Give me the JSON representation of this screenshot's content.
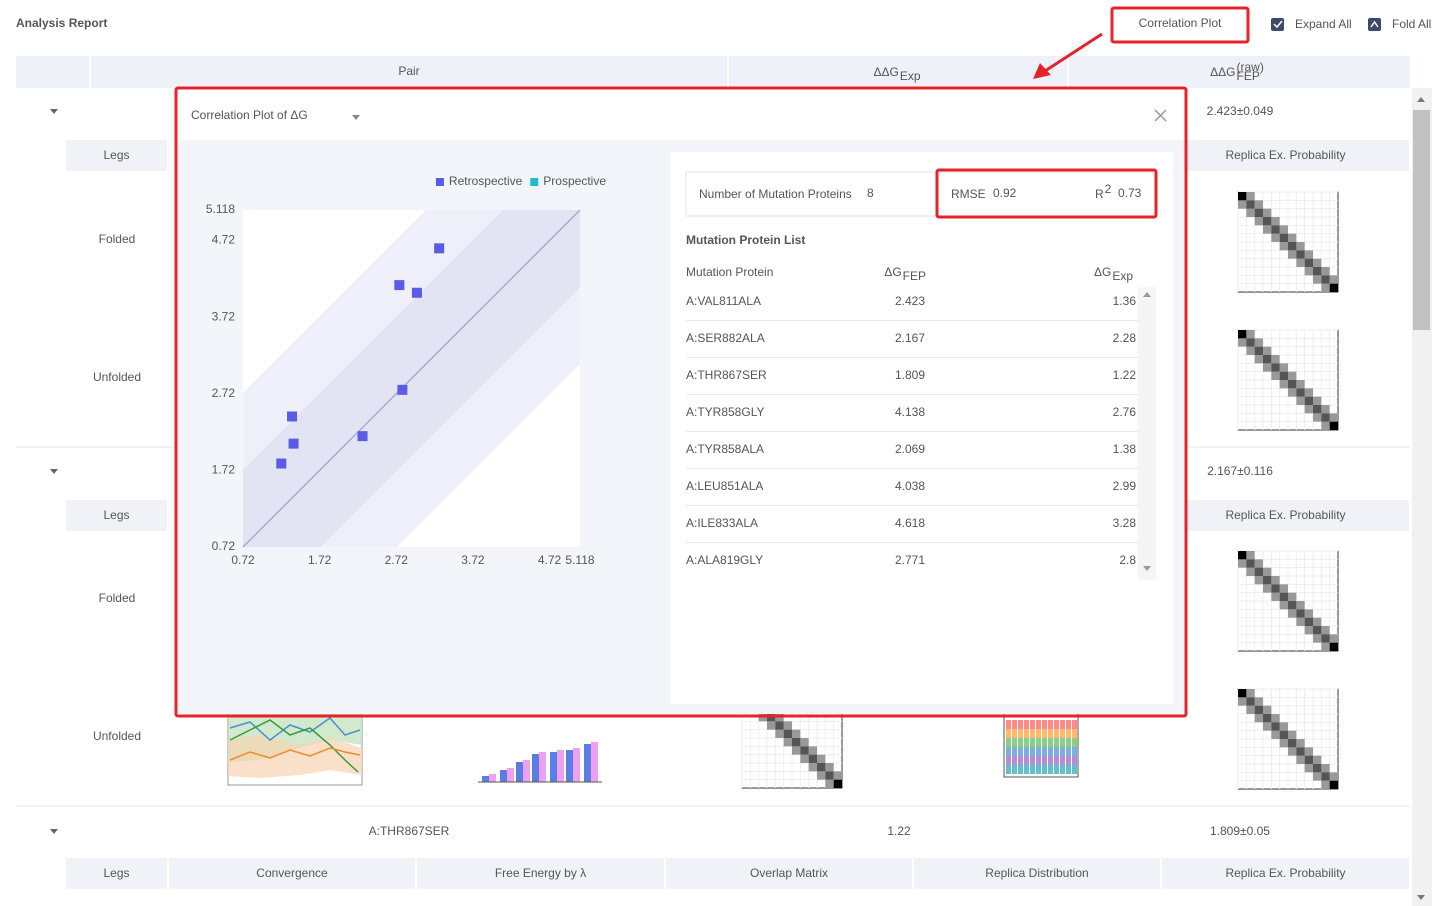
{
  "header": {
    "title": "Analysis Report",
    "correlation_button": "Correlation Plot",
    "expand_all": "Expand All",
    "fold_all": "Fold All"
  },
  "table": {
    "columns": [
      "Pair",
      {
        "main": "ΔΔG",
        "sub": "Exp"
      },
      {
        "main": "ΔΔG",
        "sup": "(raw)",
        "sub": "FEP"
      }
    ],
    "rows": [
      {
        "value_fep": "2.423±0.049",
        "sub_headers": [
          "Legs",
          "Replica Ex. Probability"
        ],
        "legs": [
          "Folded",
          "Unfolded"
        ]
      },
      {
        "value_fep": "2.167±0.116",
        "sub_headers": [
          "Legs",
          "Replica Ex. Probability"
        ],
        "legs": [
          "Folded",
          "Unfolded"
        ]
      },
      {
        "pair": "A:THR867SER",
        "value_exp": 1.22,
        "value_fep": "1.809±0.05",
        "sub_headers": [
          "Legs",
          "Convergence",
          "Free Energy by λ",
          "Overlap Matrix",
          "Replica Distribution",
          "Replica Ex. Probability"
        ]
      }
    ]
  },
  "modal": {
    "title": "Correlation Plot of ΔG",
    "stats": {
      "count_label": "Number of Mutation Proteins",
      "count": 8,
      "rmse_label": "RMSE",
      "rmse": 0.92,
      "r2_label": {
        "main": "R",
        "sup": "2"
      },
      "r2": 0.73
    },
    "list": {
      "title": "Mutation Protein List",
      "columns": [
        "Mutation Protein",
        {
          "main": "ΔG",
          "sub": "FEP"
        },
        {
          "main": "ΔG",
          "sub": "Exp"
        }
      ],
      "rows": [
        [
          "A:VAL811ALA",
          2.423,
          1.36
        ],
        [
          "A:SER882ALA",
          2.167,
          2.28
        ],
        [
          "A:THR867SER",
          1.809,
          1.22
        ],
        [
          "A:TYR858GLY",
          4.138,
          2.76
        ],
        [
          "A:TYR858ALA",
          2.069,
          1.38
        ],
        [
          "A:LEU851ALA",
          4.038,
          2.99
        ],
        [
          "A:ILE833ALA",
          4.618,
          3.28
        ],
        [
          "A:ALA819GLY",
          2.771,
          2.8
        ]
      ]
    }
  },
  "chart_data": {
    "type": "scatter",
    "series": [
      {
        "name": "Retrospective",
        "color": "#5b5ce6",
        "x": [
          1.36,
          2.28,
          1.22,
          2.76,
          1.38,
          2.99,
          3.28,
          2.8
        ],
        "values": [
          2.423,
          2.167,
          1.809,
          4.138,
          2.069,
          4.038,
          4.618,
          2.771
        ]
      },
      {
        "name": "Prospective",
        "color": "#1fbdc9",
        "x": [],
        "values": []
      }
    ],
    "xlim": [
      0.72,
      5.118
    ],
    "ylim": [
      0.72,
      5.118
    ],
    "xticks": [
      0.72,
      1.72,
      2.72,
      3.72,
      4.72,
      5.118
    ],
    "yticks": [
      0.72,
      1.72,
      2.72,
      3.72,
      4.72,
      5.118
    ],
    "diagonal": true,
    "legend_position": "top-right"
  }
}
